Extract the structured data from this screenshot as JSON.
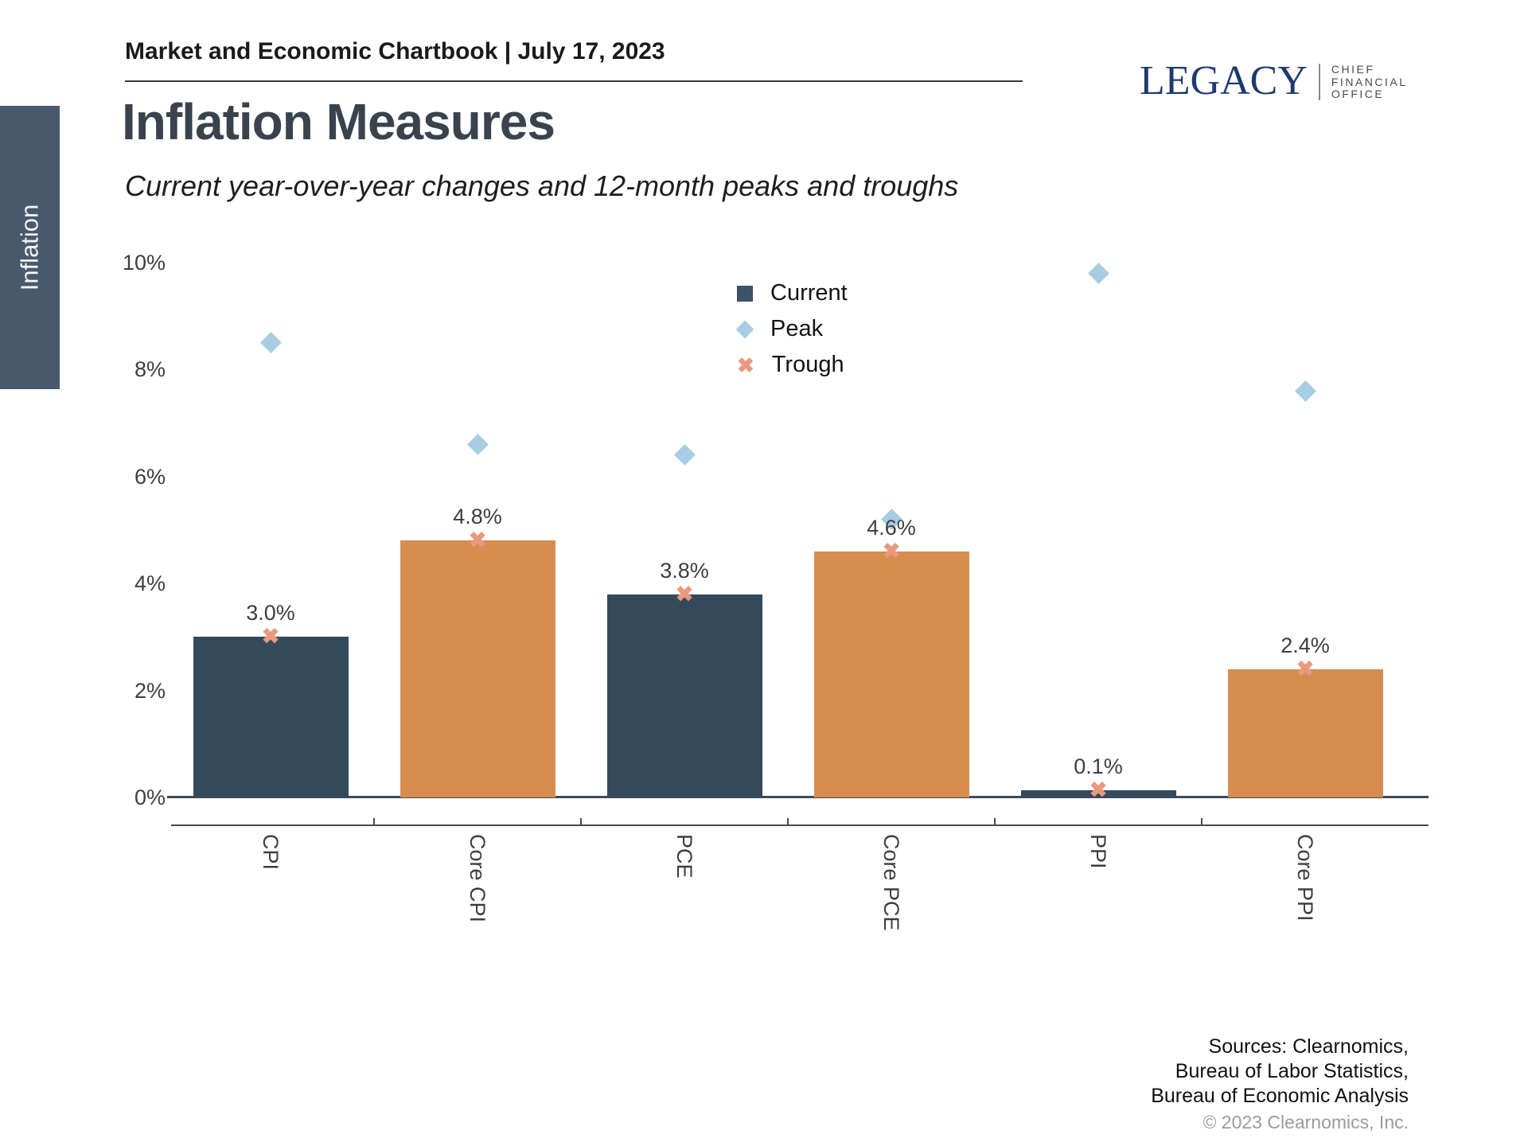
{
  "header": {
    "title": "Market and Economic Chartbook | July 17, 2023"
  },
  "logo": {
    "brand": "LEGACY",
    "tagline": "CHIEF\nFINANCIAL\nOFFICE"
  },
  "sidebar": {
    "tab_label": "Inflation"
  },
  "page": {
    "title": "Inflation Measures",
    "subtitle": "Current year-over-year changes and 12-month peaks and troughs"
  },
  "chart_data": {
    "type": "bar",
    "title": "Inflation Measures",
    "categories": [
      "CPI",
      "Core CPI",
      "PCE",
      "Core PCE",
      "PPI",
      "Core PPI"
    ],
    "series": [
      {
        "name": "Current",
        "type": "bar",
        "values": [
          3.0,
          4.8,
          3.8,
          4.6,
          0.1,
          2.4
        ],
        "labels": [
          "3.0%",
          "4.8%",
          "3.8%",
          "4.6%",
          "0.1%",
          "2.4%"
        ]
      },
      {
        "name": "Peak",
        "type": "scatter",
        "marker": "diamond",
        "values": [
          8.5,
          6.6,
          6.4,
          5.2,
          9.8,
          7.6
        ]
      },
      {
        "name": "Trough",
        "type": "scatter",
        "marker": "x",
        "values": [
          3.0,
          4.8,
          3.8,
          4.6,
          0.1,
          2.4
        ]
      }
    ],
    "bar_colors": [
      "#35495c",
      "#d68d4f",
      "#35495c",
      "#d68d4f",
      "#35495c",
      "#d68d4f"
    ],
    "yticks": [
      "0%",
      "2%",
      "4%",
      "6%",
      "8%",
      "10%"
    ],
    "ylim": [
      0,
      10
    ],
    "xlabel": "",
    "ylabel": "",
    "grid": false,
    "legend_position": "upper-center"
  },
  "colors": {
    "bar_dark": "#35495c",
    "bar_orange": "#d68d4f",
    "peak_blue": "#a8cce2",
    "trough_salmon": "#e9997c",
    "sidebar_navy": "#48596d",
    "brand_navy": "#1e3a6e"
  },
  "sources": {
    "lines": [
      "Sources: Clearnomics,",
      "Bureau of Labor Statistics,",
      "Bureau of Economic Analysis"
    ],
    "copyright": "© 2023 Clearnomics, Inc."
  }
}
